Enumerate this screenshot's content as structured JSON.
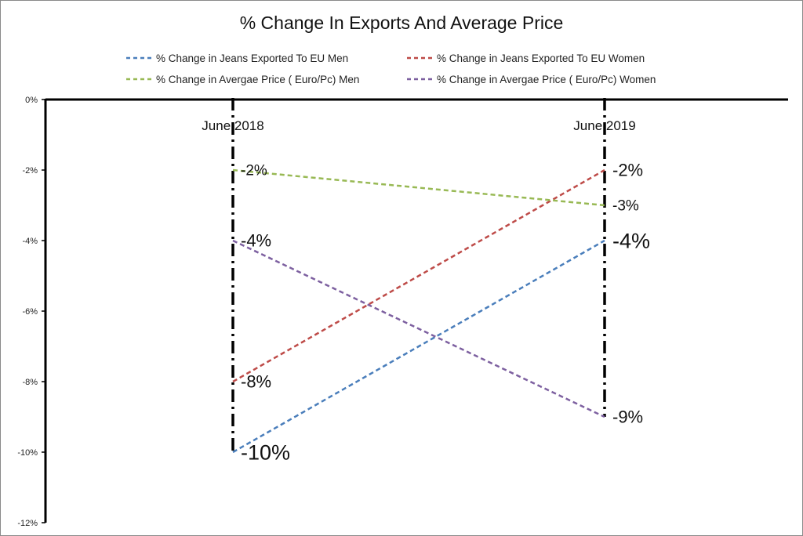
{
  "chart_data": {
    "type": "line",
    "title": "% Change In Exports And Average Price",
    "categories": [
      "June 2018",
      "June 2019"
    ],
    "ylim": [
      -12,
      0
    ],
    "yticks": [
      0,
      -2,
      -4,
      -6,
      -8,
      -10,
      -12
    ],
    "ytick_labels": [
      "0%",
      "-2%",
      "-4%",
      "-6%",
      "-8%",
      "-10%",
      "-12%"
    ],
    "grid": false,
    "legend_position": "top",
    "series": [
      {
        "name": "% Change in Jeans Exported To EU  Men",
        "values": [
          -10,
          -4
        ],
        "labels": [
          "-10%",
          "-4%"
        ],
        "color": "#4a7ebb",
        "label_sizes": [
          27,
          27
        ]
      },
      {
        "name": "% Change in Jeans Exported To EU  Women",
        "values": [
          -8,
          -2
        ],
        "labels": [
          "-8%",
          "-2%"
        ],
        "color": "#be4b48",
        "label_sizes": [
          22,
          22
        ]
      },
      {
        "name": "% Change in Avergae Price ( Euro/Pc) Men",
        "values": [
          -2,
          -3
        ],
        "labels": [
          "-2%",
          "-3%"
        ],
        "color": "#98b954",
        "label_sizes": [
          19,
          19
        ]
      },
      {
        "name": "% Change in Avergae Price ( Euro/Pc) Women",
        "values": [
          -4,
          -9
        ],
        "labels": [
          "-4%",
          "-9%"
        ],
        "color": "#7d60a0",
        "label_sizes": [
          22,
          22
        ]
      }
    ]
  }
}
